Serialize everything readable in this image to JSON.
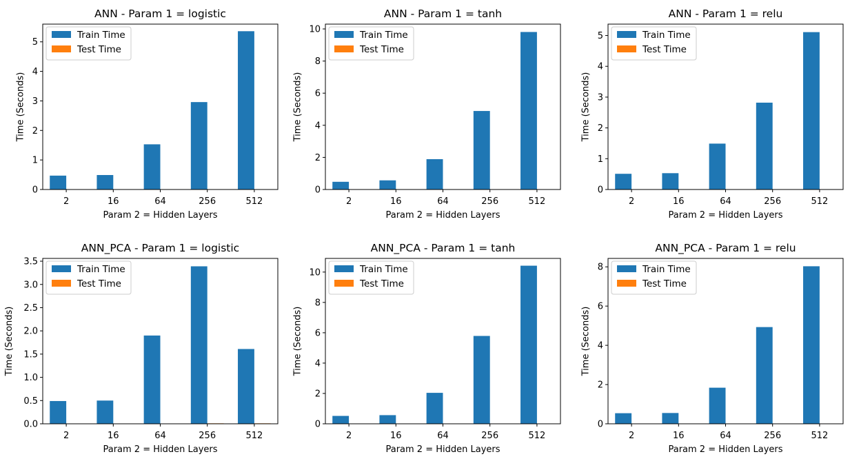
{
  "legend_labels": [
    "Train Time",
    "Test Time"
  ],
  "colors": {
    "train": "#1f77b4",
    "test": "#ff7f0e"
  },
  "chart_data": [
    {
      "type": "bar",
      "title": "ANN - Param 1 = logistic",
      "xlabel": "Param 2 = Hidden Layers",
      "ylabel": "Time (Seconds)",
      "categories": [
        "2",
        "16",
        "64",
        "256",
        "512"
      ],
      "ylim": [
        0,
        5.6
      ],
      "yticks": [
        0,
        1,
        2,
        3,
        4,
        5
      ],
      "ytick_labels": [
        "0",
        "1",
        "2",
        "3",
        "4",
        "5"
      ],
      "legend": "upper-left",
      "series": [
        {
          "name": "Train Time",
          "values": [
            0.47,
            0.49,
            1.53,
            2.96,
            5.36
          ]
        },
        {
          "name": "Test Time",
          "values": [
            0.0,
            0.0,
            0.0,
            0.0,
            0.0
          ]
        }
      ]
    },
    {
      "type": "bar",
      "title": "ANN - Param 1 = tanh",
      "xlabel": "Param 2 = Hidden Layers",
      "ylabel": "Time (Seconds)",
      "categories": [
        "2",
        "16",
        "64",
        "256",
        "512"
      ],
      "ylim": [
        0,
        10.3
      ],
      "yticks": [
        0,
        2,
        4,
        6,
        8,
        10
      ],
      "ytick_labels": [
        "0",
        "2",
        "4",
        "6",
        "8",
        "10"
      ],
      "legend": "upper-left",
      "series": [
        {
          "name": "Train Time",
          "values": [
            0.48,
            0.57,
            1.89,
            4.89,
            9.81
          ]
        },
        {
          "name": "Test Time",
          "values": [
            0.0,
            0.0,
            0.0,
            0.0,
            0.0
          ]
        }
      ]
    },
    {
      "type": "bar",
      "title": "ANN - Param 1 = relu",
      "xlabel": "Param 2 = Hidden Layers",
      "ylabel": "Time (Seconds)",
      "categories": [
        "2",
        "16",
        "64",
        "256",
        "512"
      ],
      "ylim": [
        0,
        5.37
      ],
      "yticks": [
        0,
        1,
        2,
        3,
        4,
        5
      ],
      "ytick_labels": [
        "0",
        "1",
        "2",
        "3",
        "4",
        "5"
      ],
      "legend": "upper-left",
      "series": [
        {
          "name": "Train Time",
          "values": [
            0.51,
            0.53,
            1.49,
            2.82,
            5.11
          ]
        },
        {
          "name": "Test Time",
          "values": [
            0.0,
            0.0,
            0.0,
            0.0,
            0.0
          ]
        }
      ]
    },
    {
      "type": "bar",
      "title": "ANN_PCA - Param 1 = logistic",
      "xlabel": "Param 2 = Hidden Layers",
      "ylabel": "Time (Seconds)",
      "categories": [
        "2",
        "16",
        "64",
        "256",
        "512"
      ],
      "ylim": [
        0,
        3.56
      ],
      "yticks": [
        0,
        0.5,
        1.0,
        1.5,
        2.0,
        2.5,
        3.0,
        3.5
      ],
      "ytick_labels": [
        "0.0",
        "0.5",
        "1.0",
        "1.5",
        "2.0",
        "2.5",
        "3.0",
        "3.5"
      ],
      "legend": "upper-left",
      "series": [
        {
          "name": "Train Time",
          "values": [
            0.49,
            0.5,
            1.9,
            3.39,
            1.61
          ]
        },
        {
          "name": "Test Time",
          "values": [
            0.0,
            0.0,
            0.0,
            0.01,
            0.01
          ]
        }
      ]
    },
    {
      "type": "bar",
      "title": "ANN_PCA - Param 1 = tanh",
      "xlabel": "Param 2 = Hidden Layers",
      "ylabel": "Time (Seconds)",
      "categories": [
        "2",
        "16",
        "64",
        "256",
        "512"
      ],
      "ylim": [
        0,
        10.9
      ],
      "yticks": [
        0,
        2,
        4,
        6,
        8,
        10
      ],
      "ytick_labels": [
        "0",
        "2",
        "4",
        "6",
        "8",
        "10"
      ],
      "legend": "upper-left",
      "series": [
        {
          "name": "Train Time",
          "values": [
            0.52,
            0.57,
            2.04,
            5.79,
            10.42
          ]
        },
        {
          "name": "Test Time",
          "values": [
            0.0,
            0.0,
            0.0,
            0.0,
            0.0
          ]
        }
      ]
    },
    {
      "type": "bar",
      "title": "ANN_PCA - Param 1 = relu",
      "xlabel": "Param 2 = Hidden Layers",
      "ylabel": "Time (Seconds)",
      "categories": [
        "2",
        "16",
        "64",
        "256",
        "512"
      ],
      "ylim": [
        0,
        8.43
      ],
      "yticks": [
        0,
        2,
        4,
        6,
        8
      ],
      "ytick_labels": [
        "0",
        "2",
        "4",
        "6",
        "8"
      ],
      "legend": "upper-left",
      "series": [
        {
          "name": "Train Time",
          "values": [
            0.54,
            0.55,
            1.84,
            4.93,
            8.03
          ]
        },
        {
          "name": "Test Time",
          "values": [
            0.0,
            0.0,
            0.0,
            0.0,
            0.0
          ]
        }
      ]
    }
  ]
}
